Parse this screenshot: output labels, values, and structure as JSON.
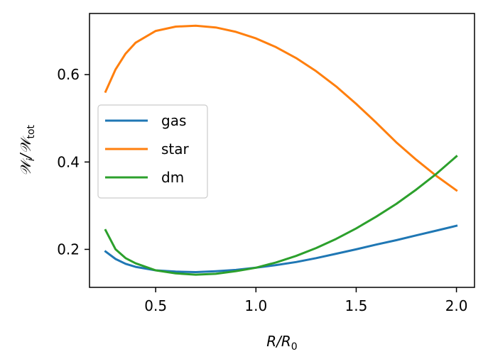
{
  "chart_data": {
    "type": "line",
    "title": "",
    "xlabel": "R/R",
    "xlabel_sub": "0",
    "ylabel": "𝒲",
    "ylabel_sub_i": "i",
    "ylabel_slash": "/𝒲",
    "ylabel_sub_tot": "tot",
    "xlim": [
      0.17,
      2.09
    ],
    "ylim": [
      0.113,
      0.74
    ],
    "xticks": [
      0.5,
      1.0,
      1.5,
      2.0
    ],
    "xtick_labels": [
      "0.5",
      "1.0",
      "1.5",
      "2.0"
    ],
    "yticks": [
      0.2,
      0.4,
      0.6
    ],
    "ytick_labels": [
      "0.2",
      "0.4",
      "0.6"
    ],
    "grid": false,
    "legend_position": "center-left",
    "x": [
      0.25,
      0.3,
      0.35,
      0.4,
      0.5,
      0.6,
      0.7,
      0.8,
      0.9,
      1.0,
      1.1,
      1.2,
      1.3,
      1.4,
      1.5,
      1.6,
      1.7,
      1.8,
      1.9,
      2.0
    ],
    "series": [
      {
        "name": "gas",
        "color": "#1f77b4",
        "values": [
          0.195,
          0.178,
          0.167,
          0.16,
          0.152,
          0.149,
          0.148,
          0.15,
          0.153,
          0.158,
          0.164,
          0.171,
          0.18,
          0.19,
          0.2,
          0.211,
          0.221,
          0.232,
          0.243,
          0.254
        ]
      },
      {
        "name": "star",
        "color": "#ff7f0e",
        "values": [
          0.561,
          0.612,
          0.648,
          0.673,
          0.7,
          0.71,
          0.712,
          0.708,
          0.698,
          0.683,
          0.663,
          0.638,
          0.608,
          0.573,
          0.533,
          0.49,
          0.445,
          0.405,
          0.368,
          0.335
        ]
      },
      {
        "name": "dm",
        "color": "#2ca02c",
        "values": [
          0.244,
          0.2,
          0.18,
          0.168,
          0.152,
          0.145,
          0.142,
          0.144,
          0.15,
          0.158,
          0.17,
          0.185,
          0.203,
          0.224,
          0.248,
          0.275,
          0.304,
          0.337,
          0.373,
          0.413
        ]
      }
    ]
  }
}
